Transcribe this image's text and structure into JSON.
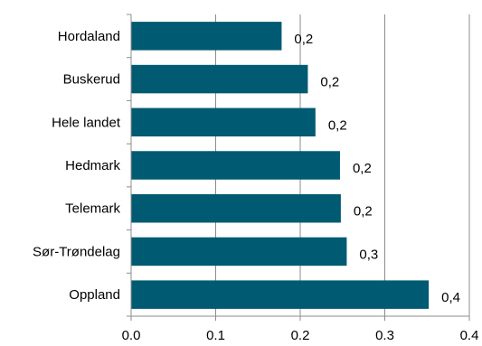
{
  "chart_data": {
    "type": "bar",
    "orientation": "horizontal",
    "categories": [
      "Hordaland",
      "Buskerud",
      "Hele landet",
      "Hedmark",
      "Telemark",
      "Sør-Trøndelag",
      "Oppland"
    ],
    "values": [
      0.178,
      0.209,
      0.218,
      0.247,
      0.248,
      0.255,
      0.352
    ],
    "data_labels": [
      "0,2",
      "0,2",
      "0,2",
      "0,2",
      "0,2",
      "0,3",
      "0,4"
    ],
    "xlim": [
      0.0,
      0.4
    ],
    "xticks": [
      0.0,
      0.1,
      0.2,
      0.3,
      0.4
    ],
    "xtick_labels": [
      "0.0",
      "0.1",
      "0.2",
      "0.3",
      "0.4"
    ],
    "title": "",
    "xlabel": "",
    "ylabel": "",
    "grid": "vertical",
    "legend": "none",
    "colors": {
      "bar": "#005a72",
      "grid": "#8c8c8c",
      "axis": "#8c8c8c"
    }
  }
}
